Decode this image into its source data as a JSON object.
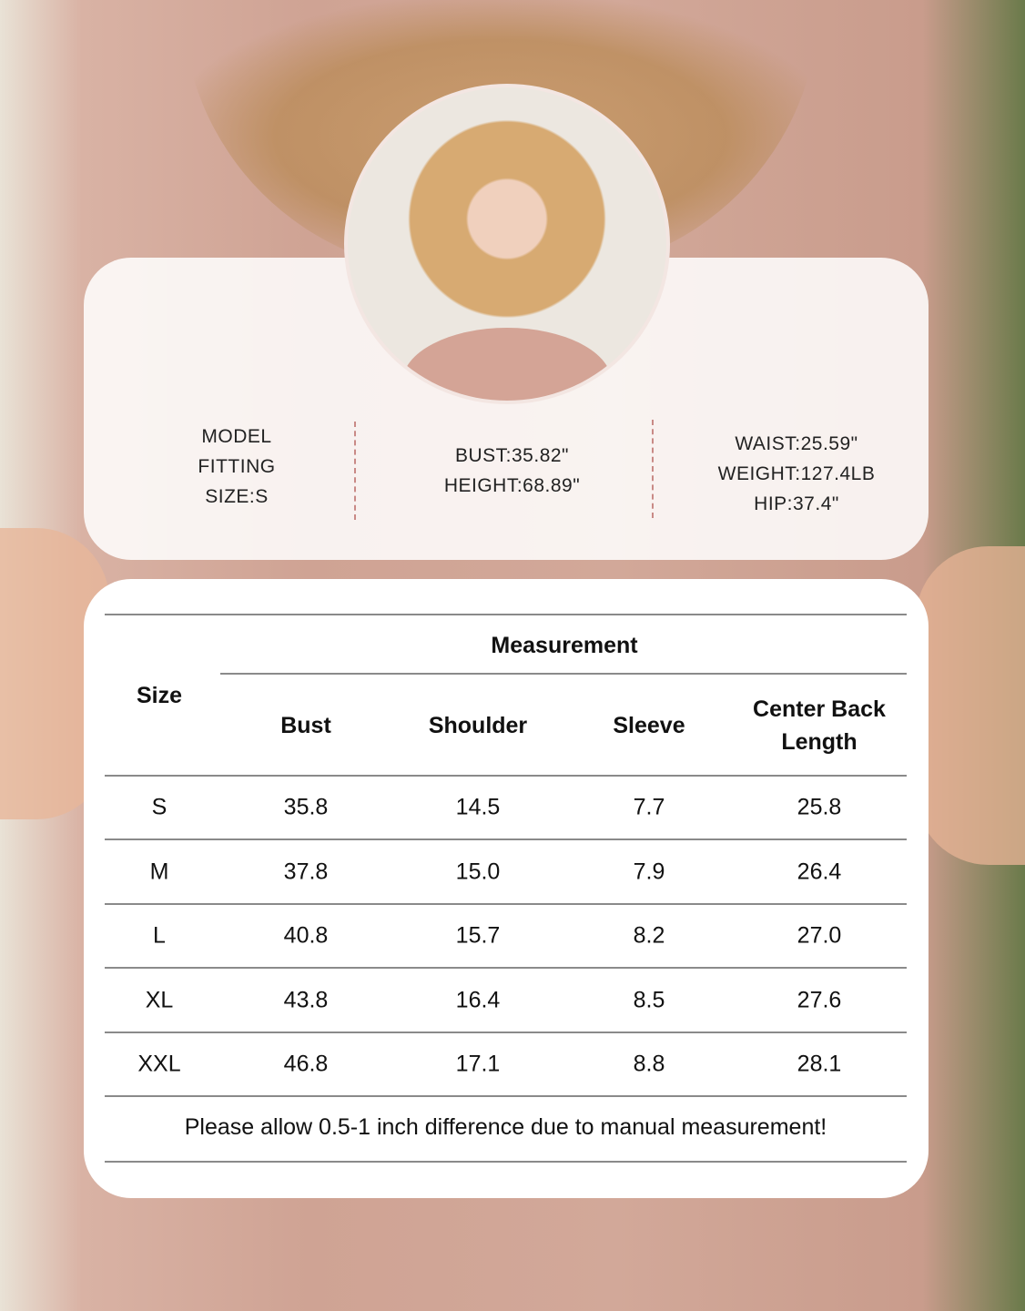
{
  "model": {
    "fitting": [
      "MODEL",
      "FITTING",
      "SIZE:S"
    ],
    "middle": [
      "BUST:35.82\"",
      "HEIGHT:68.89\""
    ],
    "right": [
      "WAIST:25.59\"",
      "WEIGHT:127.4LB",
      "HIP:37.4\""
    ]
  },
  "table": {
    "size_header": "Size",
    "group_header": "Measurement",
    "columns": [
      "Bust",
      "Shoulder",
      "Sleeve",
      "Center Back Length"
    ],
    "rows": [
      {
        "size": "S",
        "values": [
          "35.8",
          "14.5",
          "7.7",
          "25.8"
        ]
      },
      {
        "size": "M",
        "values": [
          "37.8",
          "15.0",
          "7.9",
          "26.4"
        ]
      },
      {
        "size": "L",
        "values": [
          "40.8",
          "15.7",
          "8.2",
          "27.0"
        ]
      },
      {
        "size": "XL",
        "values": [
          "43.8",
          "16.4",
          "8.5",
          "27.6"
        ]
      },
      {
        "size": "XXL",
        "values": [
          "46.8",
          "17.1",
          "8.8",
          "28.1"
        ]
      }
    ],
    "note": "Please allow 0.5-1 inch difference due to manual measurement!"
  }
}
